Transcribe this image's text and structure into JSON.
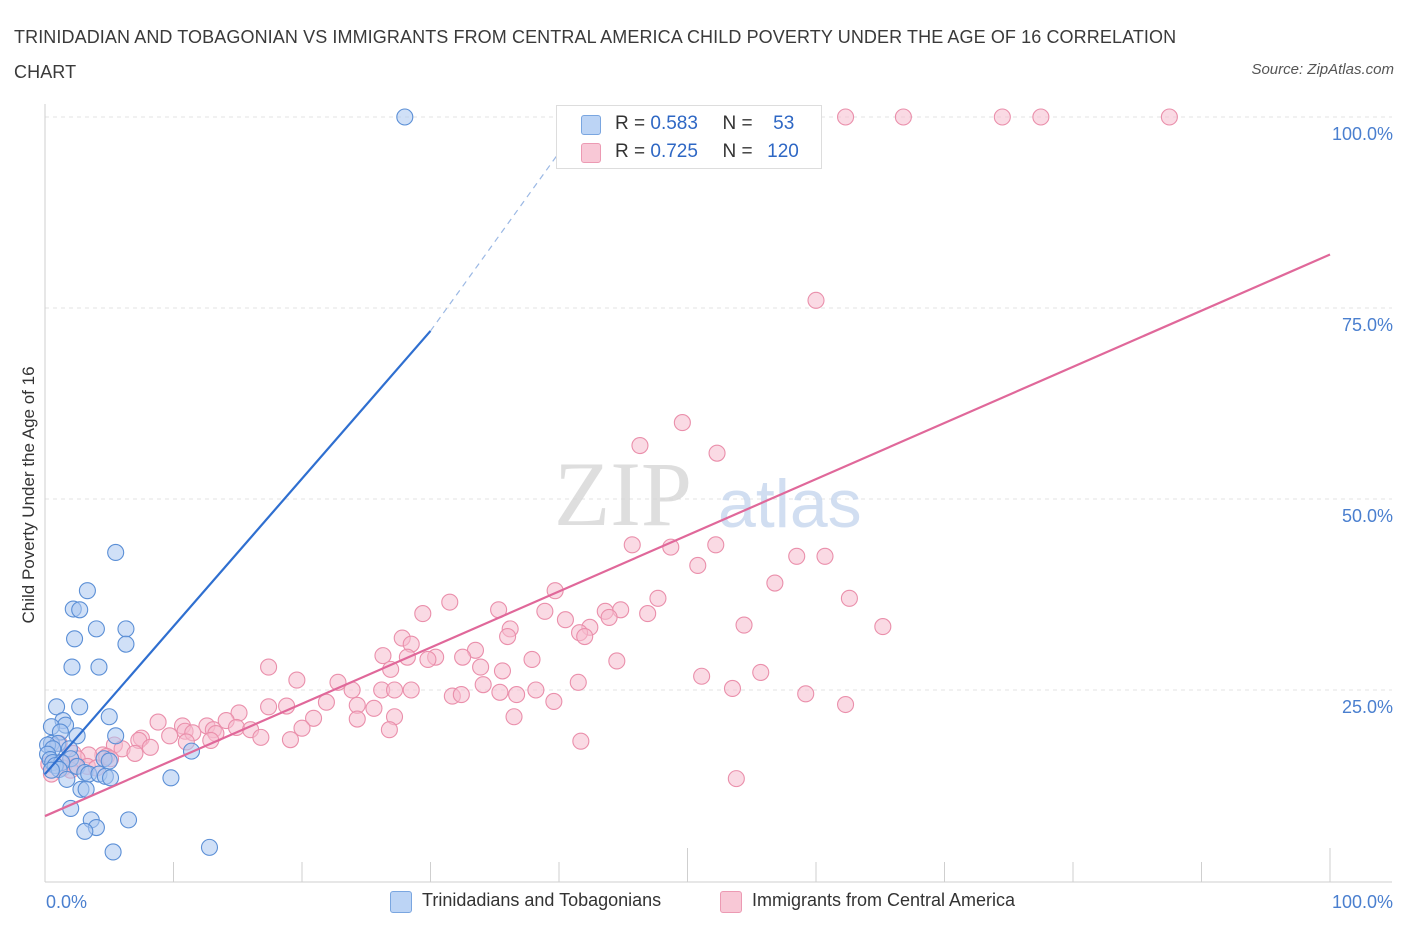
{
  "header": {
    "title": "TRINIDADIAN AND TOBAGONIAN VS IMMIGRANTS FROM CENTRAL AMERICA CHILD POVERTY UNDER THE AGE OF 16 CORRELATION CHART",
    "source": "Source: ZipAtlas.com"
  },
  "watermark": {
    "zip": "ZIP",
    "atlas": "atlas"
  },
  "legend": {
    "series1": {
      "r_label": "R =",
      "r_value": "0.583",
      "n_label": "N =",
      "n_value": "53"
    },
    "series2": {
      "r_label": "R =",
      "r_value": "0.725",
      "n_label": "N =",
      "n_value": "120"
    }
  },
  "colors": {
    "blue_fill": "#aac6f0",
    "blue_stroke": "#5b8fd6",
    "blue_line": "#2f6fd0",
    "pink_fill": "#f6bccd",
    "pink_stroke": "#ea8fab",
    "pink_line": "#e0689a",
    "tick_text": "#4a7fcf",
    "grid": "#e3e3e3"
  },
  "chart_data": {
    "type": "scatter",
    "title": "TRINIDADIAN AND TOBAGONIAN VS IMMIGRANTS FROM CENTRAL AMERICA CHILD POVERTY UNDER THE AGE OF 16 CORRELATION CHART",
    "xlabel": "",
    "ylabel": "Child Poverty Under the Age of 16",
    "xlim": [
      0,
      100
    ],
    "ylim": [
      0,
      100
    ],
    "x_tick_labels": [
      "0.0%",
      "100.0%"
    ],
    "y_tick_labels": [
      "25.0%",
      "50.0%",
      "75.0%",
      "100.0%"
    ],
    "y_ticks": [
      25,
      50,
      75,
      100
    ],
    "grid": true,
    "series": [
      {
        "name": "Trinidadians and Tobagonians",
        "color": "#aac6f0",
        "stats": {
          "R": 0.583,
          "N": 53
        },
        "trend": {
          "x": [
            0,
            30
          ],
          "y": [
            14,
            72
          ],
          "dashed_to": [
            42,
            100
          ]
        },
        "points": [
          [
            28,
            100
          ],
          [
            5.5,
            43
          ],
          [
            3.3,
            38
          ],
          [
            2.2,
            35.6
          ],
          [
            2.7,
            35.5
          ],
          [
            4,
            33
          ],
          [
            6.3,
            33
          ],
          [
            2.3,
            31.7
          ],
          [
            6.3,
            31
          ],
          [
            2.1,
            28
          ],
          [
            4.2,
            28
          ],
          [
            2.7,
            22.8
          ],
          [
            0.9,
            22.8
          ],
          [
            5,
            21.5
          ],
          [
            1.4,
            21
          ],
          [
            1.6,
            20.4
          ],
          [
            0.5,
            20.2
          ],
          [
            1.2,
            19.5
          ],
          [
            2.5,
            19
          ],
          [
            5.5,
            19
          ],
          [
            0.5,
            18
          ],
          [
            1,
            18
          ],
          [
            0.2,
            17.8
          ],
          [
            0.6,
            17.3
          ],
          [
            1.9,
            17.3
          ],
          [
            11.4,
            17
          ],
          [
            0.2,
            16.6
          ],
          [
            2,
            16
          ],
          [
            4.6,
            16
          ],
          [
            0.4,
            15.9
          ],
          [
            5,
            15.7
          ],
          [
            0.6,
            15.5
          ],
          [
            1.3,
            15.5
          ],
          [
            0.8,
            15.1
          ],
          [
            2.5,
            15
          ],
          [
            1.1,
            14.6
          ],
          [
            0.5,
            14.5
          ],
          [
            3.1,
            14.2
          ],
          [
            3.4,
            14
          ],
          [
            4.2,
            14
          ],
          [
            4.7,
            13.7
          ],
          [
            5.1,
            13.5
          ],
          [
            1.7,
            13.3
          ],
          [
            9.8,
            13.5
          ],
          [
            2.8,
            12
          ],
          [
            3.2,
            12
          ],
          [
            2,
            9.5
          ],
          [
            3.6,
            8
          ],
          [
            6.5,
            8
          ],
          [
            4,
            7
          ],
          [
            3.1,
            6.5
          ],
          [
            12.8,
            4.4
          ],
          [
            5.3,
            3.8
          ]
        ]
      },
      {
        "name": "Immigrants from Central America",
        "color": "#f6bccd",
        "stats": {
          "R": 0.725,
          "N": 120
        },
        "trend": {
          "x": [
            0,
            100
          ],
          "y": [
            8.5,
            82
          ]
        },
        "points": [
          [
            54,
            100
          ],
          [
            58,
            100
          ],
          [
            62.3,
            100
          ],
          [
            66.8,
            100
          ],
          [
            74.5,
            100
          ],
          [
            77.5,
            100
          ],
          [
            87.5,
            100
          ],
          [
            60,
            76
          ],
          [
            49.6,
            60
          ],
          [
            46.3,
            57
          ],
          [
            52.3,
            56
          ],
          [
            45.7,
            44
          ],
          [
            48.7,
            43.7
          ],
          [
            52.2,
            44
          ],
          [
            58.5,
            42.5
          ],
          [
            60.7,
            42.5
          ],
          [
            50.8,
            41.3
          ],
          [
            56.8,
            39
          ],
          [
            39.7,
            38
          ],
          [
            31.5,
            36.5
          ],
          [
            47.7,
            37
          ],
          [
            62.6,
            37
          ],
          [
            29.4,
            35
          ],
          [
            35.3,
            35.5
          ],
          [
            38.9,
            35.3
          ],
          [
            43.6,
            35.3
          ],
          [
            44.8,
            35.5
          ],
          [
            46.9,
            35
          ],
          [
            43.9,
            34.5
          ],
          [
            40.5,
            34.2
          ],
          [
            36.2,
            33
          ],
          [
            42.4,
            33.2
          ],
          [
            54.4,
            33.5
          ],
          [
            65.2,
            33.3
          ],
          [
            41.6,
            32.5
          ],
          [
            36,
            32
          ],
          [
            27.8,
            31.8
          ],
          [
            42,
            32
          ],
          [
            28.5,
            31
          ],
          [
            33.5,
            30.2
          ],
          [
            26.3,
            29.5
          ],
          [
            28.2,
            29.3
          ],
          [
            30.4,
            29.3
          ],
          [
            32.5,
            29.3
          ],
          [
            37.9,
            29
          ],
          [
            29.8,
            29
          ],
          [
            44.5,
            28.8
          ],
          [
            33.9,
            28
          ],
          [
            35.6,
            27.5
          ],
          [
            17.4,
            28
          ],
          [
            26.9,
            27.7
          ],
          [
            55.7,
            27.3
          ],
          [
            51.1,
            26.8
          ],
          [
            19.6,
            26.3
          ],
          [
            22.8,
            26
          ],
          [
            34.1,
            25.7
          ],
          [
            41.5,
            26
          ],
          [
            23.9,
            25
          ],
          [
            28.5,
            25
          ],
          [
            26.2,
            25
          ],
          [
            27.2,
            25
          ],
          [
            38.2,
            25
          ],
          [
            53.5,
            25.2
          ],
          [
            35.4,
            24.7
          ],
          [
            36.7,
            24.4
          ],
          [
            31.7,
            24.2
          ],
          [
            32.4,
            24.4
          ],
          [
            59.2,
            24.5
          ],
          [
            62.3,
            23.1
          ],
          [
            39.6,
            23.5
          ],
          [
            21.9,
            23.4
          ],
          [
            24.3,
            23
          ],
          [
            25.6,
            22.6
          ],
          [
            18.8,
            22.9
          ],
          [
            17.4,
            22.8
          ],
          [
            15.1,
            22
          ],
          [
            27.2,
            21.5
          ],
          [
            20.9,
            21.3
          ],
          [
            36.5,
            21.5
          ],
          [
            24.3,
            21.2
          ],
          [
            14.1,
            21
          ],
          [
            8.8,
            20.8
          ],
          [
            10.7,
            20.3
          ],
          [
            12.6,
            20.3
          ],
          [
            14.9,
            20.1
          ],
          [
            20,
            20
          ],
          [
            13.1,
            19.8
          ],
          [
            10.9,
            19.6
          ],
          [
            16,
            19.8
          ],
          [
            26.8,
            19.8
          ],
          [
            11.5,
            19.4
          ],
          [
            13.3,
            19.3
          ],
          [
            7.5,
            18.7
          ],
          [
            9.7,
            19
          ],
          [
            19.1,
            18.5
          ],
          [
            16.8,
            18.8
          ],
          [
            12.9,
            18.4
          ],
          [
            7.3,
            18.4
          ],
          [
            11,
            18.2
          ],
          [
            41.7,
            18.3
          ],
          [
            1.1,
            18
          ],
          [
            5.4,
            17.8
          ],
          [
            6,
            17.3
          ],
          [
            8.2,
            17.5
          ],
          [
            4.5,
            16.5
          ],
          [
            7,
            16.7
          ],
          [
            2.2,
            16.7
          ],
          [
            4.8,
            16.3
          ],
          [
            3.4,
            16.5
          ],
          [
            5.1,
            16
          ],
          [
            2.5,
            16
          ],
          [
            1.2,
            15.5
          ],
          [
            0.3,
            15.3
          ],
          [
            3.3,
            15
          ],
          [
            4,
            14.8
          ],
          [
            2.4,
            15
          ],
          [
            1.4,
            14.8
          ],
          [
            2,
            14.5
          ],
          [
            0.5,
            14
          ],
          [
            53.8,
            13.4
          ]
        ]
      }
    ]
  }
}
